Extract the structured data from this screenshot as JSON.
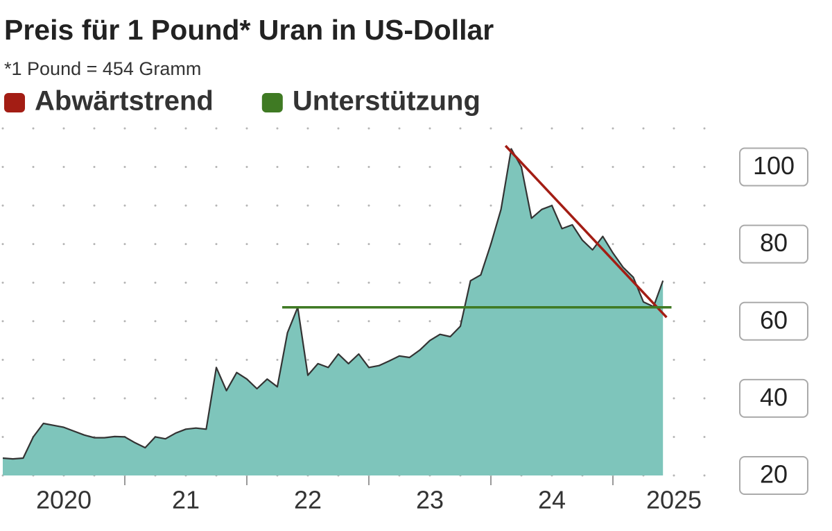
{
  "chart_data": {
    "type": "area",
    "title": "Preis für 1 Pound* Uran in US-Dollar",
    "subtitle": "*1 Pound = 454 Gramm",
    "x": [
      2020.0,
      2020.083,
      2020.167,
      2020.25,
      2020.333,
      2020.417,
      2020.5,
      2020.583,
      2020.667,
      2020.75,
      2020.833,
      2020.917,
      2021.0,
      2021.083,
      2021.167,
      2021.25,
      2021.333,
      2021.417,
      2021.5,
      2021.583,
      2021.667,
      2021.75,
      2021.833,
      2021.917,
      2022.0,
      2022.083,
      2022.167,
      2022.25,
      2022.333,
      2022.417,
      2022.5,
      2022.583,
      2022.667,
      2022.75,
      2022.833,
      2022.917,
      2023.0,
      2023.083,
      2023.167,
      2023.25,
      2023.333,
      2023.417,
      2023.5,
      2023.583,
      2023.667,
      2023.75,
      2023.833,
      2023.917,
      2024.0,
      2024.083,
      2024.167,
      2024.25,
      2024.333,
      2024.417,
      2024.5,
      2024.583,
      2024.667,
      2024.75,
      2024.833,
      2024.917,
      2025.0,
      2025.083,
      2025.167,
      2025.25,
      2025.333,
      2025.41
    ],
    "series": [
      {
        "name": "Preis",
        "color": "#7ec5bb",
        "line_color": "#333333",
        "values": [
          24.5,
          24.3,
          24.5,
          30,
          33.5,
          33,
          32.5,
          31.5,
          30.5,
          29.8,
          29.8,
          30.1,
          30,
          28.5,
          27.2,
          30,
          29.5,
          31,
          32,
          32.3,
          32,
          48,
          42,
          46.7,
          45,
          42.5,
          45,
          43,
          57,
          63.6,
          46,
          49,
          48,
          51.5,
          49,
          51.5,
          48,
          48.5,
          49.7,
          51,
          50.6,
          52.5,
          55,
          56.6,
          56,
          58.7,
          70.5,
          72,
          80,
          89,
          104.7,
          100,
          86.7,
          89,
          90,
          84,
          85,
          81,
          78.5,
          82,
          77.7,
          74,
          71.4,
          65,
          63.8,
          70.5
        ]
      }
    ],
    "trend_lines": [
      {
        "name": "Abwärtstrend",
        "color": "#a31d14",
        "x": [
          2024.12,
          2025.44
        ],
        "y": [
          105.5,
          61
        ]
      },
      {
        "name": "Unterstützung",
        "color": "#3f7a23",
        "x": [
          2022.29,
          2025.48
        ],
        "y": [
          63.6,
          63.6
        ]
      }
    ],
    "xlim": [
      2020,
      2025.9
    ],
    "xticks": [
      2021,
      2022,
      2023,
      2024,
      2025
    ],
    "x_labels": [
      {
        "value": 2020.5,
        "label": "2020"
      },
      {
        "value": 2021.5,
        "label": "21"
      },
      {
        "value": 2022.5,
        "label": "22"
      },
      {
        "value": 2023.5,
        "label": "23"
      },
      {
        "value": 2024.5,
        "label": "24"
      },
      {
        "value": 2025.5,
        "label": "2025"
      }
    ],
    "ylim": [
      20,
      110
    ],
    "yticks": [
      20,
      40,
      60,
      80,
      100
    ],
    "grid": true
  }
}
